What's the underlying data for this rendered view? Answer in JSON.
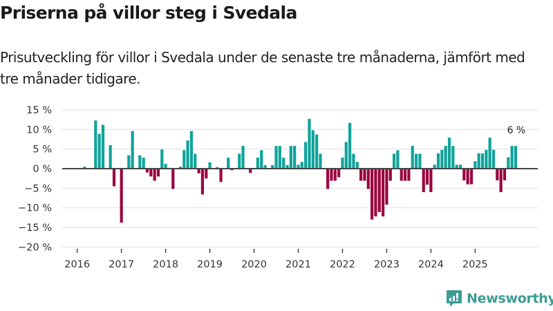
{
  "header": {
    "title": "Priserna på villor steg i Svedala",
    "subtitle": "Prisutveckling för villor i Svedala under de senaste tre månaderna, jämfört med tre månader tidigare."
  },
  "brand": {
    "name": "Newsworthy",
    "icon": "bar-chart-speech-bubble-icon",
    "color": "#3a9c94"
  },
  "colors": {
    "positive": "#0fa39a",
    "negative": "#99063f",
    "baseline": "#444444",
    "grid": "#e3e3e3"
  },
  "chart_data": {
    "type": "bar",
    "title": "Priserna på villor steg i Svedala",
    "subtitle": "Prisutveckling för villor i Svedala under de senaste tre månaderna, jämfört med tre månader tidigare.",
    "xlabel": "",
    "ylabel": "",
    "unit": "%",
    "ylim": [
      -20,
      15
    ],
    "yticks": [
      15,
      10,
      5,
      0,
      -5,
      -10,
      -15,
      -20
    ],
    "ytick_labels": [
      "15 %",
      "10 %",
      "5 %",
      "0 %",
      "−5 %",
      "−10 %",
      "−15 %",
      "−20 %"
    ],
    "xticks": [
      "2016",
      "2017",
      "2018",
      "2019",
      "2020",
      "2021",
      "2022",
      "2023",
      "2024",
      "2025"
    ],
    "grid": true,
    "legend": "none",
    "start": "2016-01",
    "frequency": "monthly",
    "end_label": "6 %",
    "values": [
      null,
      null,
      0.5,
      null,
      null,
      12.3,
      8.9,
      11.2,
      null,
      6.0,
      -4.5,
      null,
      -13.8,
      null,
      3.4,
      9.6,
      null,
      3.4,
      2.8,
      -1.0,
      -2.0,
      -3.1,
      -2.0,
      4.9,
      1.2,
      0.2,
      -5.2,
      null,
      0.5,
      4.7,
      7.2,
      9.6,
      3.8,
      -1.2,
      -6.6,
      -2.5,
      1.6,
      null,
      0.4,
      -3.4,
      null,
      2.8,
      -0.4,
      null,
      3.8,
      5.8,
      null,
      -1.1,
      null,
      2.8,
      4.7,
      0.9,
      null,
      0.9,
      5.8,
      5.8,
      2.8,
      0.9,
      5.8,
      5.8,
      1.0,
      1.7,
      6.8,
      12.7,
      9.8,
      8.7,
      3.8,
      null,
      -5.2,
      -3.1,
      -3.1,
      -2.2,
      2.8,
      6.8,
      11.7,
      3.8,
      1.7,
      -3.1,
      -3.1,
      -5.2,
      -13.0,
      -12.2,
      -11.1,
      -12.2,
      -9.2,
      -3.1,
      3.8,
      4.7,
      -3.1,
      -3.1,
      -3.1,
      5.8,
      3.8,
      3.8,
      -6.0,
      -4.1,
      -6.0,
      1.0,
      3.9,
      4.8,
      5.8,
      7.9,
      5.8,
      1.0,
      1.0,
      -3.0,
      -4.0,
      -4.0,
      1.9,
      3.9,
      3.9,
      4.8,
      7.9,
      4.8,
      -3.0,
      -6.0,
      -3.0,
      2.9,
      5.8,
      5.8
    ]
  }
}
